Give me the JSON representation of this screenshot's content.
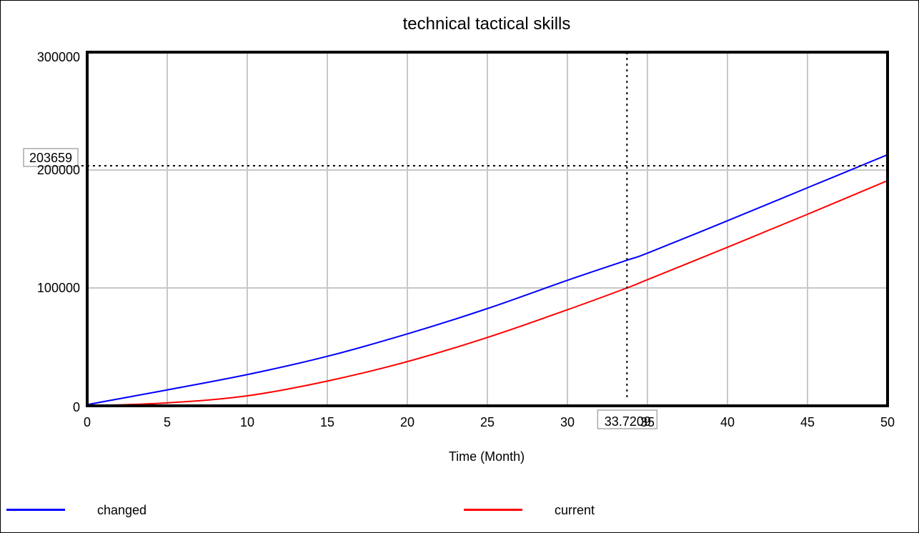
{
  "chart_data": {
    "type": "line",
    "title": "technical tactical skills",
    "xlabel": "Time (Month)",
    "ylabel": "",
    "xlim": [
      0,
      50
    ],
    "ylim": [
      0,
      300000
    ],
    "xticks": [
      "0",
      "5",
      "10",
      "15",
      "20",
      "25",
      "30",
      "35",
      "40",
      "45",
      "50"
    ],
    "yticks": [
      "0",
      "100000",
      "200000",
      "300000"
    ],
    "grid": true,
    "legend_position": "bottom",
    "series": [
      {
        "name": "changed",
        "color": "#0000ff",
        "x": [
          0,
          5,
          10,
          15,
          20,
          25,
          30,
          33.7209,
          35,
          40,
          45,
          50
        ],
        "y": [
          1000,
          13500,
          26500,
          42000,
          61000,
          82500,
          106500,
          123500,
          129500,
          157000,
          185000,
          213000
        ]
      },
      {
        "name": "current",
        "color": "#ff0000",
        "x": [
          0,
          5,
          10,
          15,
          20,
          25,
          30,
          33.7209,
          35,
          40,
          45,
          50
        ],
        "y": [
          0,
          2500,
          8500,
          21000,
          37500,
          58000,
          81500,
          100000,
          107000,
          134500,
          162500,
          191000
        ]
      }
    ],
    "cursor": {
      "x_label": "33.7209",
      "y_label": "203659",
      "x": 33.7209,
      "y": 203659
    }
  }
}
